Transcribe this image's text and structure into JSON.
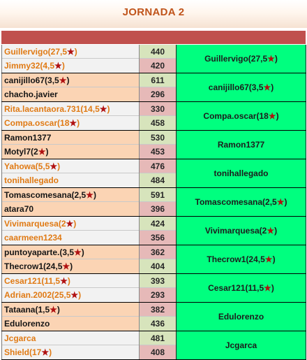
{
  "title": "JORNADA 2",
  "matches": [
    {
      "p1": {
        "name": "Guillervigo(27,5",
        "star": "★",
        "suffix": ")",
        "score": "440"
      },
      "p2": {
        "name": "Jimmy32(4,5",
        "star": "★",
        "suffix": ")",
        "score": "420"
      },
      "winner": {
        "name": "Guillervigo(27,5",
        "star": "★",
        "suffix": ")"
      }
    },
    {
      "p1": {
        "name": "canijillo67(3,5",
        "star": "★",
        "suffix": ")",
        "score": "611"
      },
      "p2": {
        "name": "chacho.javier",
        "star": "",
        "suffix": "",
        "score": "296"
      },
      "winner": {
        "name": "canijillo67(3,5",
        "star": "★",
        "suffix": ")"
      }
    },
    {
      "p1": {
        "name": "Rita.lacantaora.731(14,5",
        "star": "★",
        "suffix": ")",
        "score": "330"
      },
      "p2": {
        "name": "Compa.oscar(18",
        "star": "★",
        "suffix": ")",
        "score": "458"
      },
      "winner": {
        "name": "Compa.oscar(18",
        "star": "★",
        "suffix": ")"
      }
    },
    {
      "p1": {
        "name": "Ramon1377",
        "star": "",
        "suffix": "",
        "score": "530"
      },
      "p2": {
        "name": "Motyl7(2",
        "star": "★",
        "suffix": ")",
        "score": "453"
      },
      "winner": {
        "name": "Ramon1377",
        "star": "",
        "suffix": ""
      }
    },
    {
      "p1": {
        "name": "Yahowa(5,5",
        "star": "★",
        "suffix": ")",
        "score": "476"
      },
      "p2": {
        "name": "tonihallegado",
        "star": "",
        "suffix": "",
        "score": "484"
      },
      "winner": {
        "name": "tonihallegado",
        "star": "",
        "suffix": ""
      }
    },
    {
      "p1": {
        "name": "Tomascomesana(2,5",
        "star": "★",
        "suffix": ")",
        "score": "591"
      },
      "p2": {
        "name": "atara70",
        "star": "",
        "suffix": "",
        "score": "396"
      },
      "winner": {
        "name": "Tomascomesana(2,5",
        "star": "★",
        "suffix": ")"
      }
    },
    {
      "p1": {
        "name": "Vivimarquesa(2",
        "star": "★",
        "suffix": ")",
        "score": "424"
      },
      "p2": {
        "name": "caarmeen1234",
        "star": "",
        "suffix": "",
        "score": "356"
      },
      "winner": {
        "name": "Vivimarquesa(2",
        "star": "★",
        "suffix": ")"
      }
    },
    {
      "p1": {
        "name": "puntoyaparte.(3,5",
        "star": "★",
        "suffix": ")",
        "score": "362"
      },
      "p2": {
        "name": "Thecrow1(24,5",
        "star": "★",
        "suffix": ")",
        "score": "404"
      },
      "winner": {
        "name": "Thecrow1(24,5",
        "star": "★",
        "suffix": ")"
      }
    },
    {
      "p1": {
        "name": "Cesar121(11,5",
        "star": "★",
        "suffix": ")",
        "score": "393"
      },
      "p2": {
        "name": "Adrian.2002(25,5",
        "star": "★",
        "suffix": ")",
        "score": "293"
      },
      "winner": {
        "name": "Cesar121(11,5",
        "star": "★",
        "suffix": ")"
      }
    },
    {
      "p1": {
        "name": "Tataana(1,5",
        "star": "★",
        "suffix": ")",
        "score": "382"
      },
      "p2": {
        "name": "Edulorenzo",
        "star": "",
        "suffix": "",
        "score": "436"
      },
      "winner": {
        "name": "Edulorenzo",
        "star": "",
        "suffix": ""
      }
    },
    {
      "p1": {
        "name": "Jcgarca",
        "star": "",
        "suffix": "",
        "score": "481"
      },
      "p2": {
        "name": "Shield(17",
        "star": "★",
        "suffix": ")",
        "score": "408"
      },
      "winner": {
        "name": "Jcgarca",
        "star": "",
        "suffix": ""
      }
    }
  ]
}
